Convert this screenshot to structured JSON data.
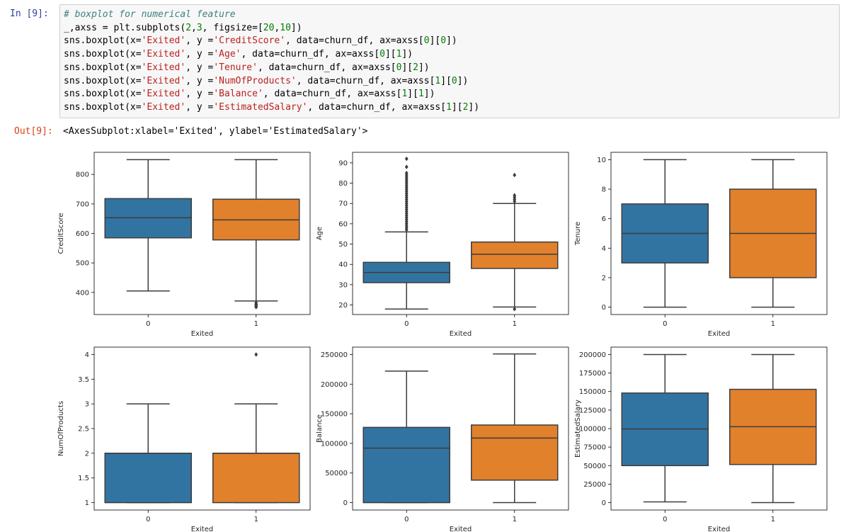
{
  "cell_input": {
    "prompt": "In  [9]:",
    "lines": [
      [
        {
          "t": "# boxplot for numerical feature",
          "c": "cm"
        }
      ],
      [
        {
          "t": "_,axss = plt.subplots("
        },
        {
          "t": "2",
          "c": "nu"
        },
        {
          "t": ","
        },
        {
          "t": "3",
          "c": "nu"
        },
        {
          "t": ", figsize=["
        },
        {
          "t": "20",
          "c": "nu"
        },
        {
          "t": ","
        },
        {
          "t": "10",
          "c": "nu"
        },
        {
          "t": "])"
        }
      ],
      [
        {
          "t": "sns.boxplot(x="
        },
        {
          "t": "'Exited'",
          "c": "st"
        },
        {
          "t": ", y ="
        },
        {
          "t": "'CreditScore'",
          "c": "st"
        },
        {
          "t": ", data=churn_df, ax=axss["
        },
        {
          "t": "0",
          "c": "nu"
        },
        {
          "t": "]["
        },
        {
          "t": "0",
          "c": "nu"
        },
        {
          "t": "])"
        }
      ],
      [
        {
          "t": "sns.boxplot(x="
        },
        {
          "t": "'Exited'",
          "c": "st"
        },
        {
          "t": ", y ="
        },
        {
          "t": "'Age'",
          "c": "st"
        },
        {
          "t": ", data=churn_df, ax=axss["
        },
        {
          "t": "0",
          "c": "nu"
        },
        {
          "t": "]["
        },
        {
          "t": "1",
          "c": "nu"
        },
        {
          "t": "])"
        }
      ],
      [
        {
          "t": "sns.boxplot(x="
        },
        {
          "t": "'Exited'",
          "c": "st"
        },
        {
          "t": ", y ="
        },
        {
          "t": "'Tenure'",
          "c": "st"
        },
        {
          "t": ", data=churn_df, ax=axss["
        },
        {
          "t": "0",
          "c": "nu"
        },
        {
          "t": "]["
        },
        {
          "t": "2",
          "c": "nu"
        },
        {
          "t": "])"
        }
      ],
      [
        {
          "t": "sns.boxplot(x="
        },
        {
          "t": "'Exited'",
          "c": "st"
        },
        {
          "t": ", y ="
        },
        {
          "t": "'NumOfProducts'",
          "c": "st"
        },
        {
          "t": ", data=churn_df, ax=axss["
        },
        {
          "t": "1",
          "c": "nu"
        },
        {
          "t": "]["
        },
        {
          "t": "0",
          "c": "nu"
        },
        {
          "t": "])"
        }
      ],
      [
        {
          "t": "sns.boxplot(x="
        },
        {
          "t": "'Exited'",
          "c": "st"
        },
        {
          "t": ", y ="
        },
        {
          "t": "'Balance'",
          "c": "st"
        },
        {
          "t": ", data=churn_df, ax=axss["
        },
        {
          "t": "1",
          "c": "nu"
        },
        {
          "t": "]["
        },
        {
          "t": "1",
          "c": "nu"
        },
        {
          "t": "])"
        }
      ],
      [
        {
          "t": "sns.boxplot(x="
        },
        {
          "t": "'Exited'",
          "c": "st"
        },
        {
          "t": ", y ="
        },
        {
          "t": "'EstimatedSalary'",
          "c": "st"
        },
        {
          "t": ", data=churn_df, ax=axss["
        },
        {
          "t": "1",
          "c": "nu"
        },
        {
          "t": "]["
        },
        {
          "t": "2",
          "c": "nu"
        },
        {
          "t": "])"
        }
      ]
    ]
  },
  "cell_output": {
    "prompt": "Out[9]:",
    "text": "<AxesSubplot:xlabel='Exited', ylabel='EstimatedSalary'>"
  },
  "colors": {
    "class_0": "#3274a1",
    "class_1": "#e1812c",
    "line": "#3d3d3d",
    "code_comment": "#408080",
    "code_string": "#ba2121",
    "code_number": "#008000",
    "in_prompt": "#303f9f",
    "out_prompt": "#d84315"
  },
  "chart_data": [
    {
      "type": "boxplot",
      "xlabel": "Exited",
      "ylabel": "CreditScore",
      "categories": [
        "0",
        "1"
      ],
      "ylim": [
        325,
        875
      ],
      "yticks": [
        400,
        500,
        600,
        700,
        800
      ],
      "boxes": [
        {
          "category": "0",
          "whisker_low": 405,
          "q1": 585,
          "median": 653,
          "q3": 718,
          "whisker_high": 850,
          "outliers": []
        },
        {
          "category": "1",
          "whisker_low": 371,
          "q1": 578,
          "median": 646,
          "q3": 716,
          "whisker_high": 850,
          "outliers": [
            365,
            360,
            358,
            355,
            351,
            350
          ]
        }
      ]
    },
    {
      "type": "boxplot",
      "xlabel": "Exited",
      "ylabel": "Age",
      "categories": [
        "0",
        "1"
      ],
      "ylim": [
        15.3,
        95.2
      ],
      "yticks": [
        20,
        30,
        40,
        50,
        60,
        70,
        80,
        90
      ],
      "boxes": [
        {
          "category": "0",
          "whisker_low": 18,
          "q1": 31,
          "median": 36,
          "q3": 41,
          "whisker_high": 56,
          "outliers": [
            57,
            58,
            59,
            60,
            61,
            62,
            63,
            64,
            65,
            66,
            67,
            68,
            69,
            70,
            71,
            72,
            73,
            74,
            75,
            76,
            77,
            78,
            79,
            80,
            81,
            82,
            83,
            84,
            85,
            88,
            92
          ]
        },
        {
          "category": "1",
          "whisker_low": 19,
          "q1": 38,
          "median": 45,
          "q3": 51,
          "whisker_high": 70,
          "outliers": [
            18,
            71,
            72,
            73,
            74,
            84
          ]
        }
      ]
    },
    {
      "type": "boxplot",
      "xlabel": "Exited",
      "ylabel": "Tenure",
      "categories": [
        "0",
        "1"
      ],
      "ylim": [
        -0.5,
        10.5
      ],
      "yticks": [
        0,
        2,
        4,
        6,
        8,
        10
      ],
      "boxes": [
        {
          "category": "0",
          "whisker_low": 0,
          "q1": 3,
          "median": 5,
          "q3": 7,
          "whisker_high": 10,
          "outliers": []
        },
        {
          "category": "1",
          "whisker_low": 0,
          "q1": 2,
          "median": 5,
          "q3": 8,
          "whisker_high": 10,
          "outliers": []
        }
      ]
    },
    {
      "type": "boxplot",
      "xlabel": "Exited",
      "ylabel": "NumOfProducts",
      "categories": [
        "0",
        "1"
      ],
      "ylim": [
        0.85,
        4.15
      ],
      "yticks": [
        1.0,
        1.5,
        2.0,
        2.5,
        3.0,
        3.5,
        4.0
      ],
      "boxes": [
        {
          "category": "0",
          "whisker_low": 1,
          "q1": 1,
          "median": 2,
          "q3": 2,
          "whisker_high": 3,
          "outliers": []
        },
        {
          "category": "1",
          "whisker_low": 1,
          "q1": 1,
          "median": 2,
          "q3": 2,
          "whisker_high": 3,
          "outliers": [
            4
          ]
        }
      ]
    },
    {
      "type": "boxplot",
      "xlabel": "Exited",
      "ylabel": "Balance",
      "categories": [
        "0",
        "1"
      ],
      "ylim": [
        -12500,
        262500
      ],
      "yticks": [
        0,
        50000,
        100000,
        150000,
        200000,
        250000
      ],
      "boxes": [
        {
          "category": "0",
          "whisker_low": 0,
          "q1": 0,
          "median": 92000,
          "q3": 127000,
          "whisker_high": 222000,
          "outliers": []
        },
        {
          "category": "1",
          "whisker_low": 0,
          "q1": 38000,
          "median": 109000,
          "q3": 131000,
          "whisker_high": 251000,
          "outliers": []
        }
      ]
    },
    {
      "type": "boxplot",
      "xlabel": "Exited",
      "ylabel": "EstimatedSalary",
      "categories": [
        "0",
        "1"
      ],
      "ylim": [
        -10000,
        210000
      ],
      "yticks": [
        0,
        25000,
        50000,
        75000,
        100000,
        125000,
        150000,
        175000,
        200000
      ],
      "boxes": [
        {
          "category": "0",
          "whisker_low": 1000,
          "q1": 50000,
          "median": 99500,
          "q3": 148000,
          "whisker_high": 200000,
          "outliers": []
        },
        {
          "category": "1",
          "whisker_low": 0,
          "q1": 51500,
          "median": 102500,
          "q3": 153000,
          "whisker_high": 200000,
          "outliers": []
        }
      ]
    }
  ]
}
